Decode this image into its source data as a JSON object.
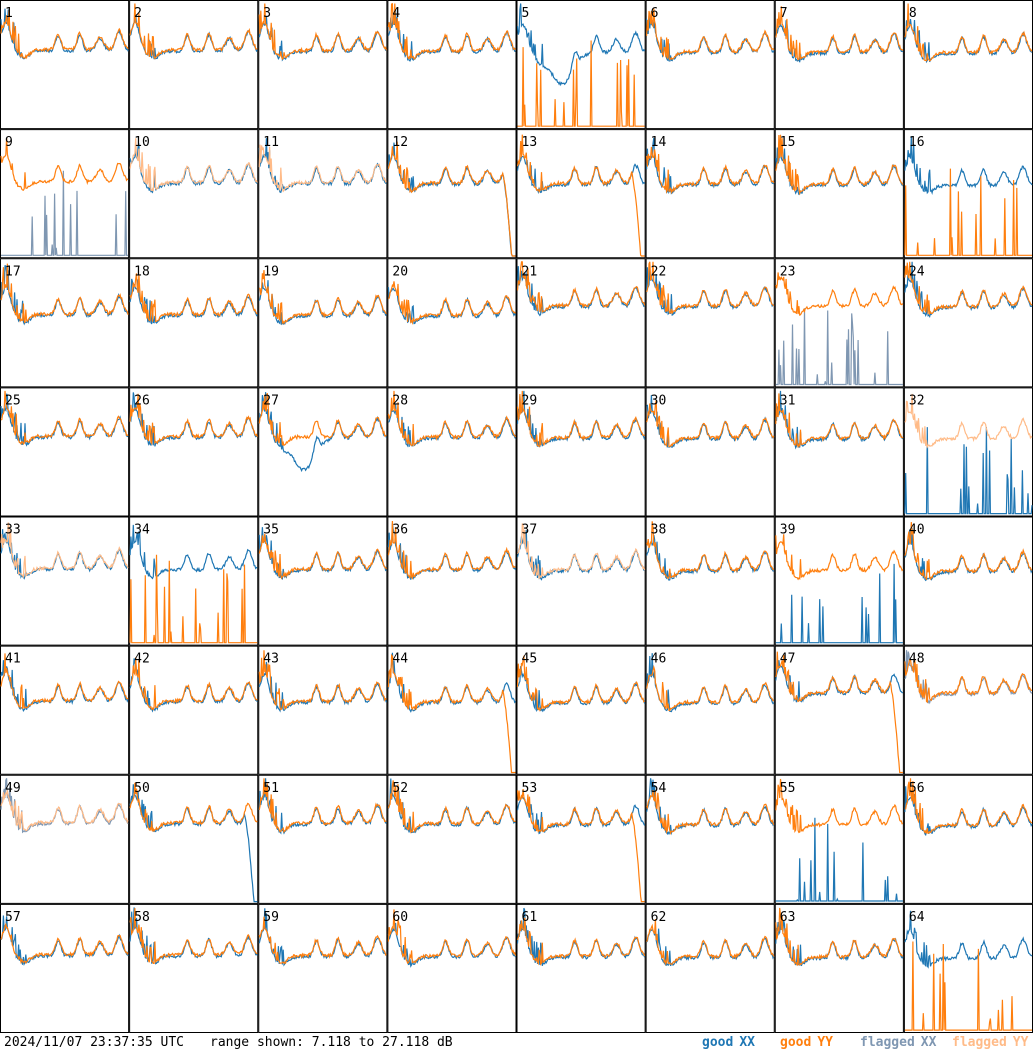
{
  "chart_data": {
    "type": "line",
    "layout": "8x8 grid of per-input spectra",
    "grid_rows": 8,
    "grid_cols": 8,
    "timestamp": "2024/11/07 23:37:35 UTC",
    "range_text": "range shown: 7.118 to 27.118 dB",
    "ylim": [
      7.118,
      27.118
    ],
    "yunit": "dB",
    "panels": [
      "1",
      "2",
      "3",
      "4",
      "5",
      "6",
      "7",
      "8",
      "9",
      "10",
      "11",
      "12",
      "13",
      "14",
      "15",
      "16",
      "17",
      "18",
      "19",
      "20",
      "21",
      "22",
      "23",
      "24",
      "25",
      "26",
      "27",
      "28",
      "29",
      "30",
      "31",
      "32",
      "33",
      "34",
      "35",
      "36",
      "37",
      "38",
      "39",
      "40",
      "41",
      "42",
      "43",
      "44",
      "45",
      "46",
      "47",
      "48",
      "49",
      "50",
      "51",
      "52",
      "53",
      "54",
      "55",
      "56",
      "57",
      "58",
      "59",
      "60",
      "61",
      "62",
      "63",
      "64"
    ],
    "legend": [
      {
        "label": "good",
        "code": "XX",
        "color": "#1f77b4"
      },
      {
        "label": "good",
        "code": "YY",
        "color": "#ff7f0e"
      },
      {
        "label": "flagged",
        "code": "XX",
        "color": "#7f97b2"
      },
      {
        "label": "flagged",
        "code": "YY",
        "color": "#ffbb88"
      }
    ],
    "colors": {
      "good_xx": "#1f77b4",
      "good_yy": "#ff7f0e",
      "flagged_xx": "#7f97b2",
      "flagged_yy": "#ffbb88"
    },
    "flagged": {
      "xx": [
        "9",
        "23",
        "48",
        "49"
      ],
      "yy": [
        "10",
        "11",
        "32",
        "33",
        "37",
        "49"
      ]
    },
    "variants": {
      "5": {
        "xx": "dip",
        "yy": "spikes"
      },
      "9": {
        "xx": "spikes"
      },
      "12": {
        "xx": "drop",
        "yy": "drop"
      },
      "13": {
        "yy": "drop"
      },
      "16": {
        "yy": "spikes"
      },
      "23": {
        "xx": "spikes"
      },
      "27": {
        "xx": "dip"
      },
      "32": {
        "xx": "spikes"
      },
      "34": {
        "yy": "spikes"
      },
      "39": {
        "xx": "spikes"
      },
      "44": {
        "yy": "drop"
      },
      "47": {
        "yy": "drop"
      },
      "50": {
        "xx": "drop"
      },
      "53": {
        "yy": "drop"
      },
      "55": {
        "xx": "spikes"
      },
      "64": {
        "yy": "spikes"
      }
    }
  }
}
